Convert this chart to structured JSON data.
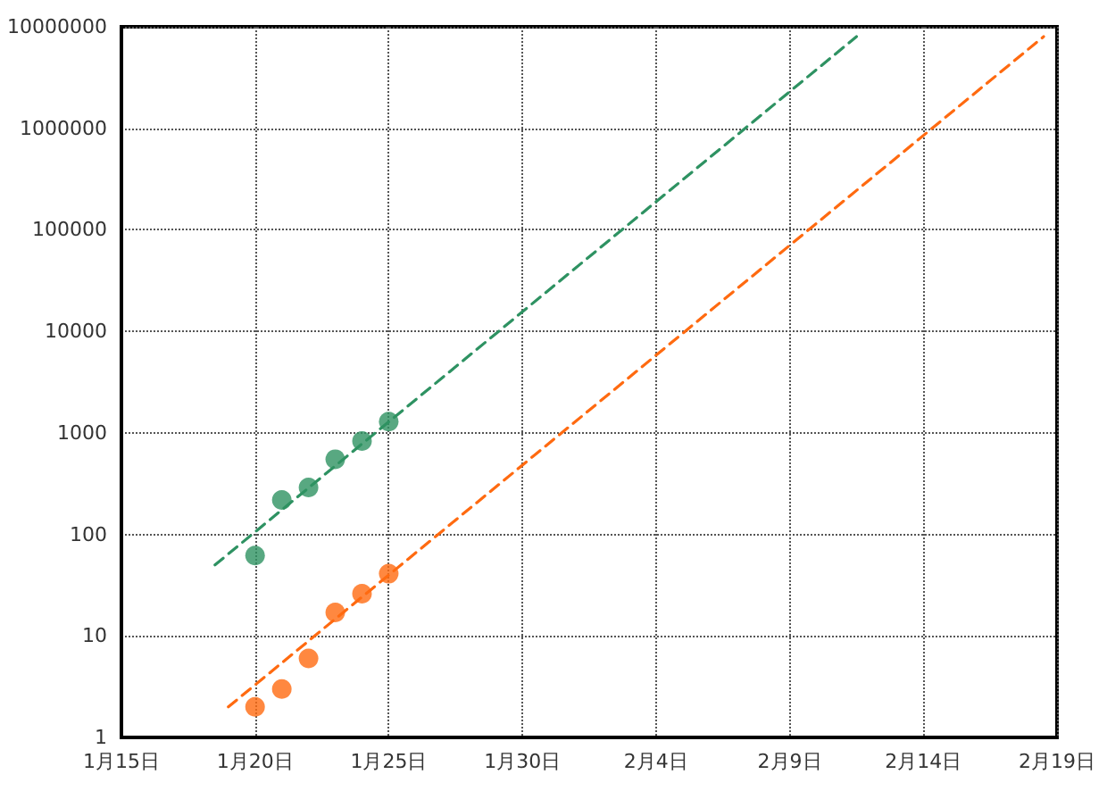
{
  "chart_data": {
    "type": "scatter",
    "log": "y",
    "grid": true,
    "xlim": [
      "--01-15",
      "--02-19"
    ],
    "xticks": [
      {
        "value": "--01-15",
        "label": "1月15日"
      },
      {
        "value": "--01-20",
        "label": "1月20日"
      },
      {
        "value": "--01-25",
        "label": "1月25日"
      },
      {
        "value": "--01-30",
        "label": "1月30日"
      },
      {
        "value": "--02-04",
        "label": "2月4日"
      },
      {
        "value": "--02-09",
        "label": "2月9日"
      },
      {
        "value": "--02-14",
        "label": "2月14日"
      },
      {
        "value": "--02-19",
        "label": "2月19日"
      }
    ],
    "ylim": [
      1,
      10000000
    ],
    "yticks": [
      1,
      10,
      100,
      1000,
      10000,
      100000,
      1000000,
      10000000
    ],
    "series": [
      {
        "marker": "circle",
        "color": "#2e9262",
        "x": [
          "--01-20",
          "--01-21",
          "--01-22",
          "--01-23",
          "--01-24",
          "--01-25"
        ],
        "values": [
          62,
          218,
          290,
          550,
          830,
          1290
        ]
      },
      {
        "marker": "circle",
        "color": "#ff6a10",
        "x": [
          "--01-20",
          "--01-21",
          "--01-22",
          "--01-23",
          "--01-24",
          "--01-25"
        ],
        "values": [
          2,
          3,
          6,
          17,
          26,
          41
        ]
      },
      {
        "type": "line",
        "marker": "none",
        "line_style": "dashed",
        "color": "#2e9262",
        "x": [
          "--01-18T12:00",
          "--02-11T12:00"
        ],
        "values": [
          50,
          8000000
        ]
      },
      {
        "type": "line",
        "marker": "none",
        "line_style": "dashed",
        "color": "#ff6a10",
        "x": [
          "--01-19",
          "--02-18T12:00"
        ],
        "values": [
          2,
          8000000
        ]
      }
    ]
  }
}
